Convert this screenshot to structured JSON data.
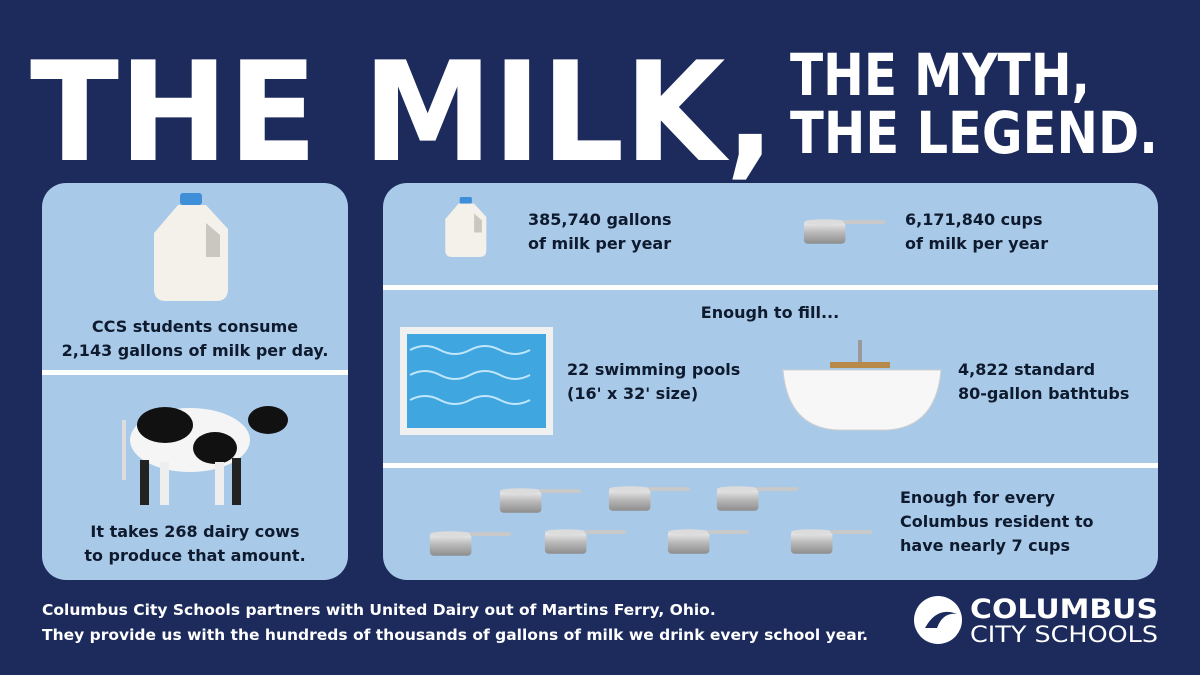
{
  "title": {
    "main": "THE MILK,",
    "side": [
      "THE MYTH,",
      "THE LEGEND."
    ]
  },
  "left_panel": {
    "top": {
      "lines": [
        "CCS students consume",
        "2,143 gallons of milk per day."
      ]
    },
    "bottom": {
      "lines": [
        "It takes 268 dairy cows",
        "to produce that amount."
      ]
    }
  },
  "right_panel": {
    "gallons": {
      "lines": [
        "385,740 gallons",
        "of milk per year"
      ]
    },
    "cups": {
      "lines": [
        "6,171,840 cups",
        "of milk per year"
      ]
    },
    "fill_heading": "Enough to fill...",
    "pools": {
      "lines": [
        "22 swimming pools",
        "(16' x 32' size)"
      ]
    },
    "bathtubs": {
      "lines": [
        "4,822 standard",
        "80-gallon bathtubs"
      ]
    },
    "residents": {
      "lines": [
        "Enough for every",
        "Columbus resident to",
        "have nearly 7 cups"
      ]
    }
  },
  "footer": {
    "lines": [
      "Columbus City Schools partners with United Dairy out of Martins Ferry, Ohio.",
      "They provide us with the hundreds of thousands of gallons of milk we drink every school year."
    ]
  },
  "logo": {
    "name": "COLUMBUS",
    "sub": "CITY SCHOOLS"
  }
}
